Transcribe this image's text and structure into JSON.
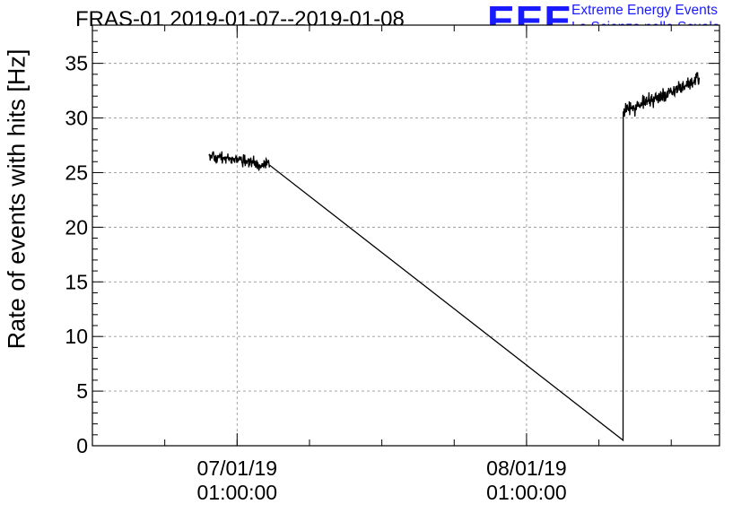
{
  "header": {
    "title": "FRAS-01 2019-01-07--2019-01-08",
    "logo_text": "EEE",
    "logo_line1": "Extreme Energy Events",
    "logo_line2": "La Scienza nelle Scuole",
    "logo_color": "#1a1aff"
  },
  "chart_data": {
    "type": "line",
    "title": "FRAS-01 2019-01-07--2019-01-08",
    "xlabel": "",
    "ylabel": "Rate of events with hits [Hz]",
    "ylim": [
      0,
      38.5
    ],
    "y_ticks": [
      0,
      5,
      10,
      15,
      20,
      25,
      30,
      35
    ],
    "xlim": [
      "2019-01-06 13:00",
      "2019-01-08 17:00"
    ],
    "x_ticks": [
      {
        "at": "2019-01-07 01:00",
        "label_line1": "07/01/19",
        "label_line2": "01:00:00"
      },
      {
        "at": "2019-01-08 01:00",
        "label_line1": "08/01/19",
        "label_line2": "01:00:00"
      }
    ],
    "grid": true,
    "line_color": "#000000",
    "series": [
      {
        "name": "",
        "note": "approx. 2-minute noisy rate data in two active intervals joined by a straight segment",
        "segments": [
          {
            "start": "2019-01-06 22:40",
            "end": "2019-01-07 03:40",
            "level_start": 26.5,
            "level_end": 25.7,
            "noise": 1.1
          },
          {
            "start": "2019-01-07 03:40",
            "end": "2019-01-08 09:00",
            "level_start": 25.7,
            "level_end": 0.5,
            "noise": 0
          },
          {
            "start": "2019-01-08 09:00",
            "end": "2019-01-08 09:01",
            "level_start": 0.5,
            "level_end": 30.0,
            "noise": 0
          },
          {
            "start": "2019-01-08 09:01",
            "end": "2019-01-08 15:20",
            "level_start": 30.6,
            "level_end": 33.5,
            "noise": 1.3
          }
        ],
        "points": [
          [
            "2019-01-06 22:40",
            26.3
          ],
          [
            "2019-01-06 23:30",
            26.6
          ],
          [
            "2019-01-07 00:20",
            26.2
          ],
          [
            "2019-01-07 01:10",
            26.0
          ],
          [
            "2019-01-07 02:00",
            25.8
          ],
          [
            "2019-01-07 03:00",
            25.6
          ],
          [
            "2019-01-07 03:40",
            25.7
          ],
          [
            "2019-01-08 09:00",
            0.5
          ],
          [
            "2019-01-08 09:01",
            30.0
          ],
          [
            "2019-01-08 10:00",
            31.0
          ],
          [
            "2019-01-08 11:00",
            31.5
          ],
          [
            "2019-01-08 12:00",
            32.0
          ],
          [
            "2019-01-08 13:00",
            32.6
          ],
          [
            "2019-01-08 14:00",
            33.0
          ],
          [
            "2019-01-08 15:20",
            33.5
          ]
        ]
      }
    ]
  }
}
